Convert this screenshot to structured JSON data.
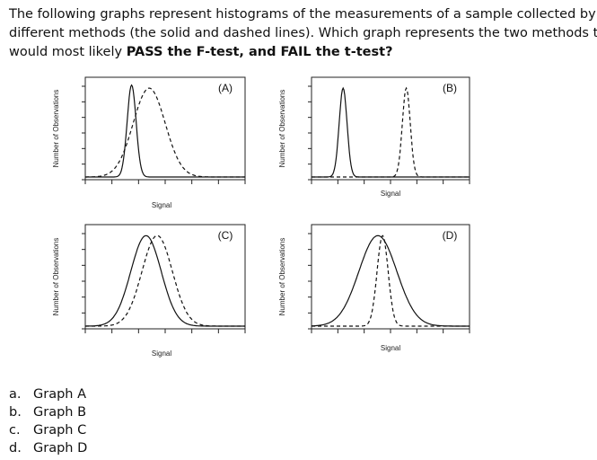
{
  "question": {
    "lines": [
      "The following graphs represent histograms of the measurements of a sample collected by two",
      "different methods (the solid and dashed lines). Which graph represents the two methods that",
      "would most likely "
    ],
    "emphasis": "PASS the F-test, and FAIL the t-test?"
  },
  "graphs": [
    {
      "label": "(A)",
      "y_axis_label": "Number of Observations",
      "x_axis_label": "Signal"
    },
    {
      "label": "(B)",
      "y_axis_label": "Number of Observations",
      "x_axis_label": "Signal"
    },
    {
      "label": "(C)",
      "y_axis_label": "Number of Observations",
      "x_axis_label": "Signal"
    },
    {
      "label": "(D)",
      "y_axis_label": "Number of Observations",
      "x_axis_label": "Signal"
    }
  ],
  "options": [
    {
      "letter": "a.",
      "text": "Graph A"
    },
    {
      "letter": "b.",
      "text": "Graph B"
    },
    {
      "letter": "c.",
      "text": "Graph C"
    },
    {
      "letter": "d.",
      "text": "Graph D"
    }
  ]
}
